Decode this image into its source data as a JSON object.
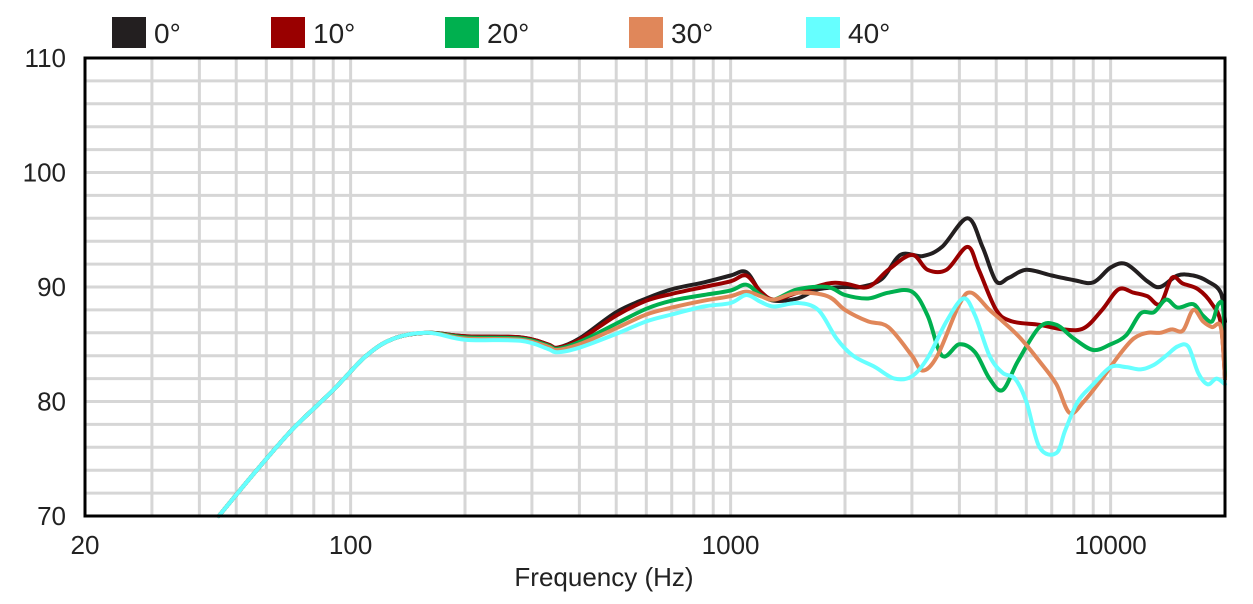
{
  "chart_data": {
    "type": "line",
    "title": "",
    "xlabel": "Frequency (Hz)",
    "ylabel": "",
    "x_scale": "log",
    "xlim": [
      20,
      20000
    ],
    "ylim": [
      70,
      110
    ],
    "grid": true,
    "legend_position": "top",
    "x_ticks": [
      {
        "value": 20,
        "label": "20"
      },
      {
        "value": 100,
        "label": "100"
      },
      {
        "value": 1000,
        "label": "1000"
      },
      {
        "value": 10000,
        "label": "10000"
      }
    ],
    "y_ticks": [
      {
        "value": 70,
        "label": "70"
      },
      {
        "value": 80,
        "label": "80"
      },
      {
        "value": 90,
        "label": "90"
      },
      {
        "value": 100,
        "label": "100"
      },
      {
        "value": 110,
        "label": "110"
      }
    ],
    "series": [
      {
        "name": "0°",
        "color": "#231f20",
        "points": [
          [
            45,
            70
          ],
          [
            55,
            73.5
          ],
          [
            70,
            77.5
          ],
          [
            90,
            81
          ],
          [
            110,
            84
          ],
          [
            130,
            85.5
          ],
          [
            160,
            86
          ],
          [
            200,
            85.7
          ],
          [
            280,
            85.6
          ],
          [
            330,
            85.0
          ],
          [
            350,
            84.7
          ],
          [
            400,
            85.5
          ],
          [
            500,
            87.8
          ],
          [
            600,
            89
          ],
          [
            700,
            89.8
          ],
          [
            850,
            90.4
          ],
          [
            1000,
            91
          ],
          [
            1100,
            91.3
          ],
          [
            1200,
            89.5
          ],
          [
            1300,
            88.8
          ],
          [
            1500,
            89
          ],
          [
            1700,
            89.8
          ],
          [
            2000,
            90
          ],
          [
            2200,
            90
          ],
          [
            2500,
            90.7
          ],
          [
            2800,
            92.8
          ],
          [
            3200,
            92.7
          ],
          [
            3600,
            93.5
          ],
          [
            4200,
            96
          ],
          [
            4600,
            93.5
          ],
          [
            5000,
            90.5
          ],
          [
            5400,
            90.8
          ],
          [
            6000,
            91.5
          ],
          [
            7000,
            91
          ],
          [
            8000,
            90.6
          ],
          [
            9000,
            90.4
          ],
          [
            10000,
            91.7
          ],
          [
            11000,
            92
          ],
          [
            12500,
            90.5
          ],
          [
            13500,
            90
          ],
          [
            15000,
            91
          ],
          [
            16500,
            91
          ],
          [
            18000,
            90.5
          ],
          [
            19500,
            89.5
          ],
          [
            20000,
            87
          ]
        ]
      },
      {
        "name": "10°",
        "color": "#990000",
        "points": [
          [
            45,
            70
          ],
          [
            55,
            73.5
          ],
          [
            70,
            77.5
          ],
          [
            90,
            81
          ],
          [
            110,
            84
          ],
          [
            130,
            85.5
          ],
          [
            160,
            86
          ],
          [
            200,
            85.7
          ],
          [
            280,
            85.6
          ],
          [
            330,
            85.0
          ],
          [
            350,
            84.7
          ],
          [
            400,
            85.4
          ],
          [
            500,
            87.5
          ],
          [
            600,
            88.8
          ],
          [
            700,
            89.4
          ],
          [
            850,
            90
          ],
          [
            1000,
            90.5
          ],
          [
            1100,
            91
          ],
          [
            1200,
            89.6
          ],
          [
            1300,
            88.9
          ],
          [
            1500,
            89.5
          ],
          [
            1800,
            90.3
          ],
          [
            2000,
            90.3
          ],
          [
            2300,
            90
          ],
          [
            2600,
            91.5
          ],
          [
            3000,
            92.8
          ],
          [
            3300,
            91.5
          ],
          [
            3700,
            91.5
          ],
          [
            4200,
            93.5
          ],
          [
            4500,
            91.5
          ],
          [
            5000,
            88
          ],
          [
            5500,
            87
          ],
          [
            6500,
            86.7
          ],
          [
            7500,
            86.3
          ],
          [
            8500,
            86.4
          ],
          [
            9500,
            88
          ],
          [
            10500,
            89.8
          ],
          [
            11500,
            89.5
          ],
          [
            12500,
            89.2
          ],
          [
            13500,
            88.5
          ],
          [
            14500,
            90.8
          ],
          [
            15500,
            90.3
          ],
          [
            17000,
            89.8
          ],
          [
            18500,
            88.5
          ],
          [
            19500,
            86.8
          ],
          [
            20000,
            82
          ]
        ]
      },
      {
        "name": "20°",
        "color": "#00b04f",
        "points": [
          [
            45,
            70
          ],
          [
            55,
            73.5
          ],
          [
            70,
            77.5
          ],
          [
            90,
            81
          ],
          [
            110,
            84
          ],
          [
            130,
            85.5
          ],
          [
            160,
            86
          ],
          [
            200,
            85.6
          ],
          [
            280,
            85.5
          ],
          [
            330,
            84.9
          ],
          [
            350,
            84.6
          ],
          [
            400,
            85.2
          ],
          [
            500,
            86.8
          ],
          [
            600,
            88.1
          ],
          [
            700,
            88.8
          ],
          [
            850,
            89.3
          ],
          [
            1000,
            89.7
          ],
          [
            1100,
            90.2
          ],
          [
            1200,
            89.3
          ],
          [
            1300,
            88.9
          ],
          [
            1500,
            89.8
          ],
          [
            1800,
            90
          ],
          [
            2000,
            89.3
          ],
          [
            2300,
            89
          ],
          [
            2600,
            89.5
          ],
          [
            3000,
            89.6
          ],
          [
            3300,
            87.5
          ],
          [
            3600,
            84
          ],
          [
            4000,
            85
          ],
          [
            4400,
            84.3
          ],
          [
            4800,
            82
          ],
          [
            5200,
            81
          ],
          [
            5700,
            83.5
          ],
          [
            6500,
            86.5
          ],
          [
            7200,
            86.7
          ],
          [
            8000,
            85.5
          ],
          [
            9000,
            84.5
          ],
          [
            10000,
            85
          ],
          [
            11000,
            85.8
          ],
          [
            12000,
            87.7
          ],
          [
            13000,
            87.8
          ],
          [
            14000,
            88.9
          ],
          [
            15000,
            88.2
          ],
          [
            16500,
            88.5
          ],
          [
            17500,
            87.5
          ],
          [
            18500,
            87
          ],
          [
            19200,
            88.5
          ],
          [
            19800,
            88
          ],
          [
            20000,
            82
          ]
        ]
      },
      {
        "name": "30°",
        "color": "#e0875a",
        "points": [
          [
            45,
            70
          ],
          [
            55,
            73.5
          ],
          [
            70,
            77.5
          ],
          [
            90,
            81
          ],
          [
            110,
            84
          ],
          [
            130,
            85.5
          ],
          [
            160,
            86
          ],
          [
            200,
            85.5
          ],
          [
            280,
            85.4
          ],
          [
            330,
            84.8
          ],
          [
            350,
            84.5
          ],
          [
            400,
            85
          ],
          [
            500,
            86.4
          ],
          [
            600,
            87.6
          ],
          [
            700,
            88.2
          ],
          [
            850,
            88.8
          ],
          [
            1000,
            89.2
          ],
          [
            1100,
            89.6
          ],
          [
            1200,
            89.2
          ],
          [
            1300,
            88.9
          ],
          [
            1500,
            89.5
          ],
          [
            1800,
            89.2
          ],
          [
            2000,
            88
          ],
          [
            2300,
            87
          ],
          [
            2600,
            86.5
          ],
          [
            3000,
            84
          ],
          [
            3200,
            82.7
          ],
          [
            3500,
            84
          ],
          [
            4000,
            88.5
          ],
          [
            4300,
            89.5
          ],
          [
            4800,
            88
          ],
          [
            5200,
            87
          ],
          [
            5800,
            85.5
          ],
          [
            6500,
            83.5
          ],
          [
            7200,
            81.5
          ],
          [
            7800,
            79
          ],
          [
            8500,
            80
          ],
          [
            9500,
            82
          ],
          [
            10500,
            84
          ],
          [
            11500,
            85.5
          ],
          [
            12500,
            86
          ],
          [
            13500,
            86
          ],
          [
            14500,
            86.3
          ],
          [
            15500,
            86.2
          ],
          [
            16500,
            88
          ],
          [
            17500,
            87
          ],
          [
            18500,
            86.5
          ],
          [
            19500,
            86.5
          ],
          [
            20000,
            82
          ]
        ]
      },
      {
        "name": "40°",
        "color": "#66ffff",
        "points": [
          [
            45,
            70
          ],
          [
            55,
            73.5
          ],
          [
            70,
            77.5
          ],
          [
            90,
            81
          ],
          [
            110,
            84
          ],
          [
            130,
            85.5
          ],
          [
            160,
            86
          ],
          [
            200,
            85.4
          ],
          [
            280,
            85.3
          ],
          [
            330,
            84.6
          ],
          [
            350,
            84.3
          ],
          [
            400,
            84.7
          ],
          [
            500,
            85.9
          ],
          [
            600,
            87
          ],
          [
            700,
            87.6
          ],
          [
            850,
            88.3
          ],
          [
            1000,
            88.6
          ],
          [
            1100,
            89.3
          ],
          [
            1200,
            88.7
          ],
          [
            1300,
            88.3
          ],
          [
            1500,
            88.6
          ],
          [
            1700,
            88
          ],
          [
            1900,
            85.5
          ],
          [
            2100,
            84
          ],
          [
            2400,
            83
          ],
          [
            2700,
            82
          ],
          [
            3000,
            82.2
          ],
          [
            3300,
            83.8
          ],
          [
            3700,
            87
          ],
          [
            4100,
            89
          ],
          [
            4400,
            87.5
          ],
          [
            4800,
            84
          ],
          [
            5200,
            82.5
          ],
          [
            5600,
            82
          ],
          [
            6000,
            80
          ],
          [
            6500,
            76
          ],
          [
            7200,
            75.5
          ],
          [
            7600,
            77.5
          ],
          [
            8200,
            80
          ],
          [
            9000,
            81.5
          ],
          [
            10000,
            83
          ],
          [
            11000,
            83
          ],
          [
            12000,
            82.8
          ],
          [
            13000,
            83.2
          ],
          [
            14000,
            84
          ],
          [
            15000,
            84.8
          ],
          [
            16000,
            84.8
          ],
          [
            17000,
            82.5
          ],
          [
            18000,
            81.5
          ],
          [
            19000,
            82
          ],
          [
            20000,
            81.5
          ]
        ]
      }
    ]
  }
}
